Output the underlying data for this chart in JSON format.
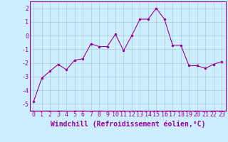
{
  "x": [
    0,
    1,
    2,
    3,
    4,
    5,
    6,
    7,
    8,
    9,
    10,
    11,
    12,
    13,
    14,
    15,
    16,
    17,
    18,
    19,
    20,
    21,
    22,
    23
  ],
  "y": [
    -4.8,
    -3.1,
    -2.6,
    -2.1,
    -2.5,
    -1.8,
    -1.7,
    -0.6,
    -0.8,
    -0.8,
    0.1,
    -1.1,
    0.0,
    1.2,
    1.2,
    2.0,
    1.2,
    -0.7,
    -0.7,
    -2.2,
    -2.2,
    -2.4,
    -2.1,
    -1.9
  ],
  "line_color": "#990099",
  "marker": "o",
  "marker_size": 2,
  "bg_color": "#cceeff",
  "grid_color": "#aacccc",
  "xlabel": "Windchill (Refroidissement éolien,°C)",
  "xlabel_fontsize": 7,
  "tick_fontsize": 6,
  "ylim": [
    -5.5,
    2.5
  ],
  "xlim": [
    -0.5,
    23.5
  ],
  "yticks": [
    -5,
    -4,
    -3,
    -2,
    -1,
    0,
    1,
    2
  ],
  "xticks": [
    0,
    1,
    2,
    3,
    4,
    5,
    6,
    7,
    8,
    9,
    10,
    11,
    12,
    13,
    14,
    15,
    16,
    17,
    18,
    19,
    20,
    21,
    22,
    23
  ]
}
